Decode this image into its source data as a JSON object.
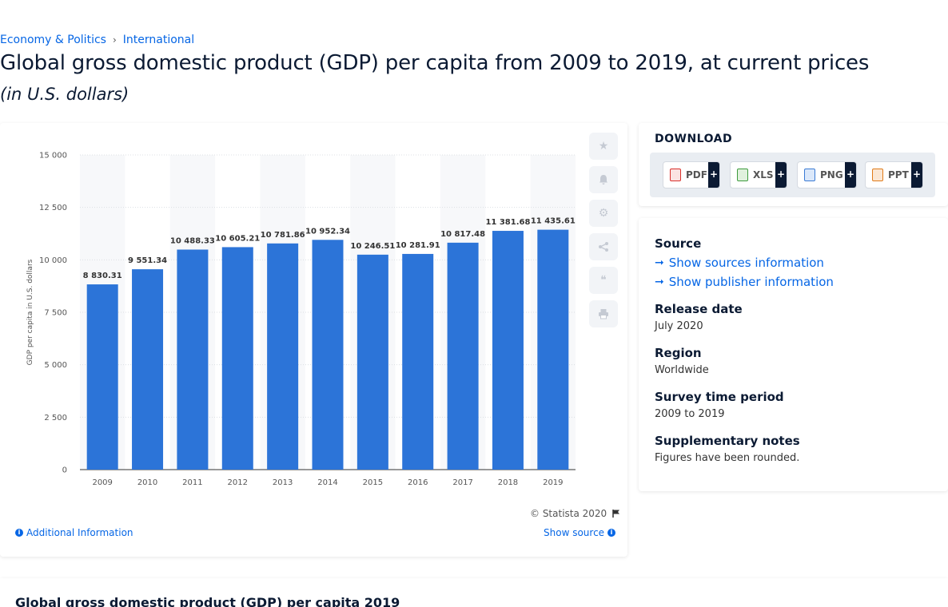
{
  "breadcrumb": {
    "items": [
      "Economy & Politics",
      "International"
    ],
    "separator": "›"
  },
  "title": "Global gross domestic product (GDP) per capita from 2009 to 2019, at current prices",
  "subtitle": "(in U.S. dollars)",
  "chart_data": {
    "type": "bar",
    "categories": [
      "2009",
      "2010",
      "2011",
      "2012",
      "2013",
      "2014",
      "2015",
      "2016",
      "2017",
      "2018",
      "2019"
    ],
    "values": [
      8830.31,
      9551.34,
      10488.33,
      10605.21,
      10781.86,
      10952.34,
      10246.51,
      10281.91,
      10817.48,
      11381.68,
      11435.61
    ],
    "data_labels": [
      "8 830.31",
      "9 551.34",
      "10 488.33",
      "10 605.21",
      "10 781.86",
      "10 952.34",
      "10 246.51",
      "10 281.91",
      "10 817.48",
      "11 381.68",
      "11 435.61"
    ],
    "ylabel": "GDP per capita in U.S. dollars",
    "xlabel": "",
    "ylim": [
      0,
      15000
    ],
    "yticks": [
      0,
      2500,
      5000,
      7500,
      10000,
      12500,
      15000
    ],
    "ytick_labels": [
      "0",
      "2 500",
      "5 000",
      "7 500",
      "10 000",
      "12 500",
      "15 000"
    ],
    "grid": true,
    "bar_color": "#2c74d8"
  },
  "chart_footer": {
    "copyright": "© Statista 2020",
    "additional_info": "Additional Information",
    "show_source": "Show source"
  },
  "actions": [
    {
      "icon": "star-icon",
      "glyph": "★"
    },
    {
      "icon": "bell-icon",
      "glyph": "🔔"
    },
    {
      "icon": "gear-icon",
      "glyph": "⚙"
    },
    {
      "icon": "share-icon",
      "glyph": "⇪"
    },
    {
      "icon": "quote-icon",
      "glyph": "❝"
    },
    {
      "icon": "print-icon",
      "glyph": "⎙"
    }
  ],
  "download": {
    "title": "DOWNLOAD",
    "buttons": [
      {
        "label": "PDF",
        "icon": "pdf-icon",
        "color": "#d9302c"
      },
      {
        "label": "XLS",
        "icon": "xls-icon",
        "color": "#3d9b3d"
      },
      {
        "label": "PNG",
        "icon": "png-icon",
        "color": "#3a7bd5"
      },
      {
        "label": "PPT",
        "icon": "ppt-icon",
        "color": "#e07b1a"
      }
    ],
    "plus": "+"
  },
  "meta": {
    "source_label": "Source",
    "show_sources": "Show sources information",
    "show_publisher": "Show publisher information",
    "release_label": "Release date",
    "release_value": "July 2020",
    "region_label": "Region",
    "region_value": "Worldwide",
    "survey_label": "Survey time period",
    "survey_value": "2009 to 2019",
    "notes_label": "Supplementary notes",
    "notes_value": "Figures have been rounded."
  },
  "bottom": {
    "title": "Global gross domestic product (GDP) per capita 2019"
  }
}
